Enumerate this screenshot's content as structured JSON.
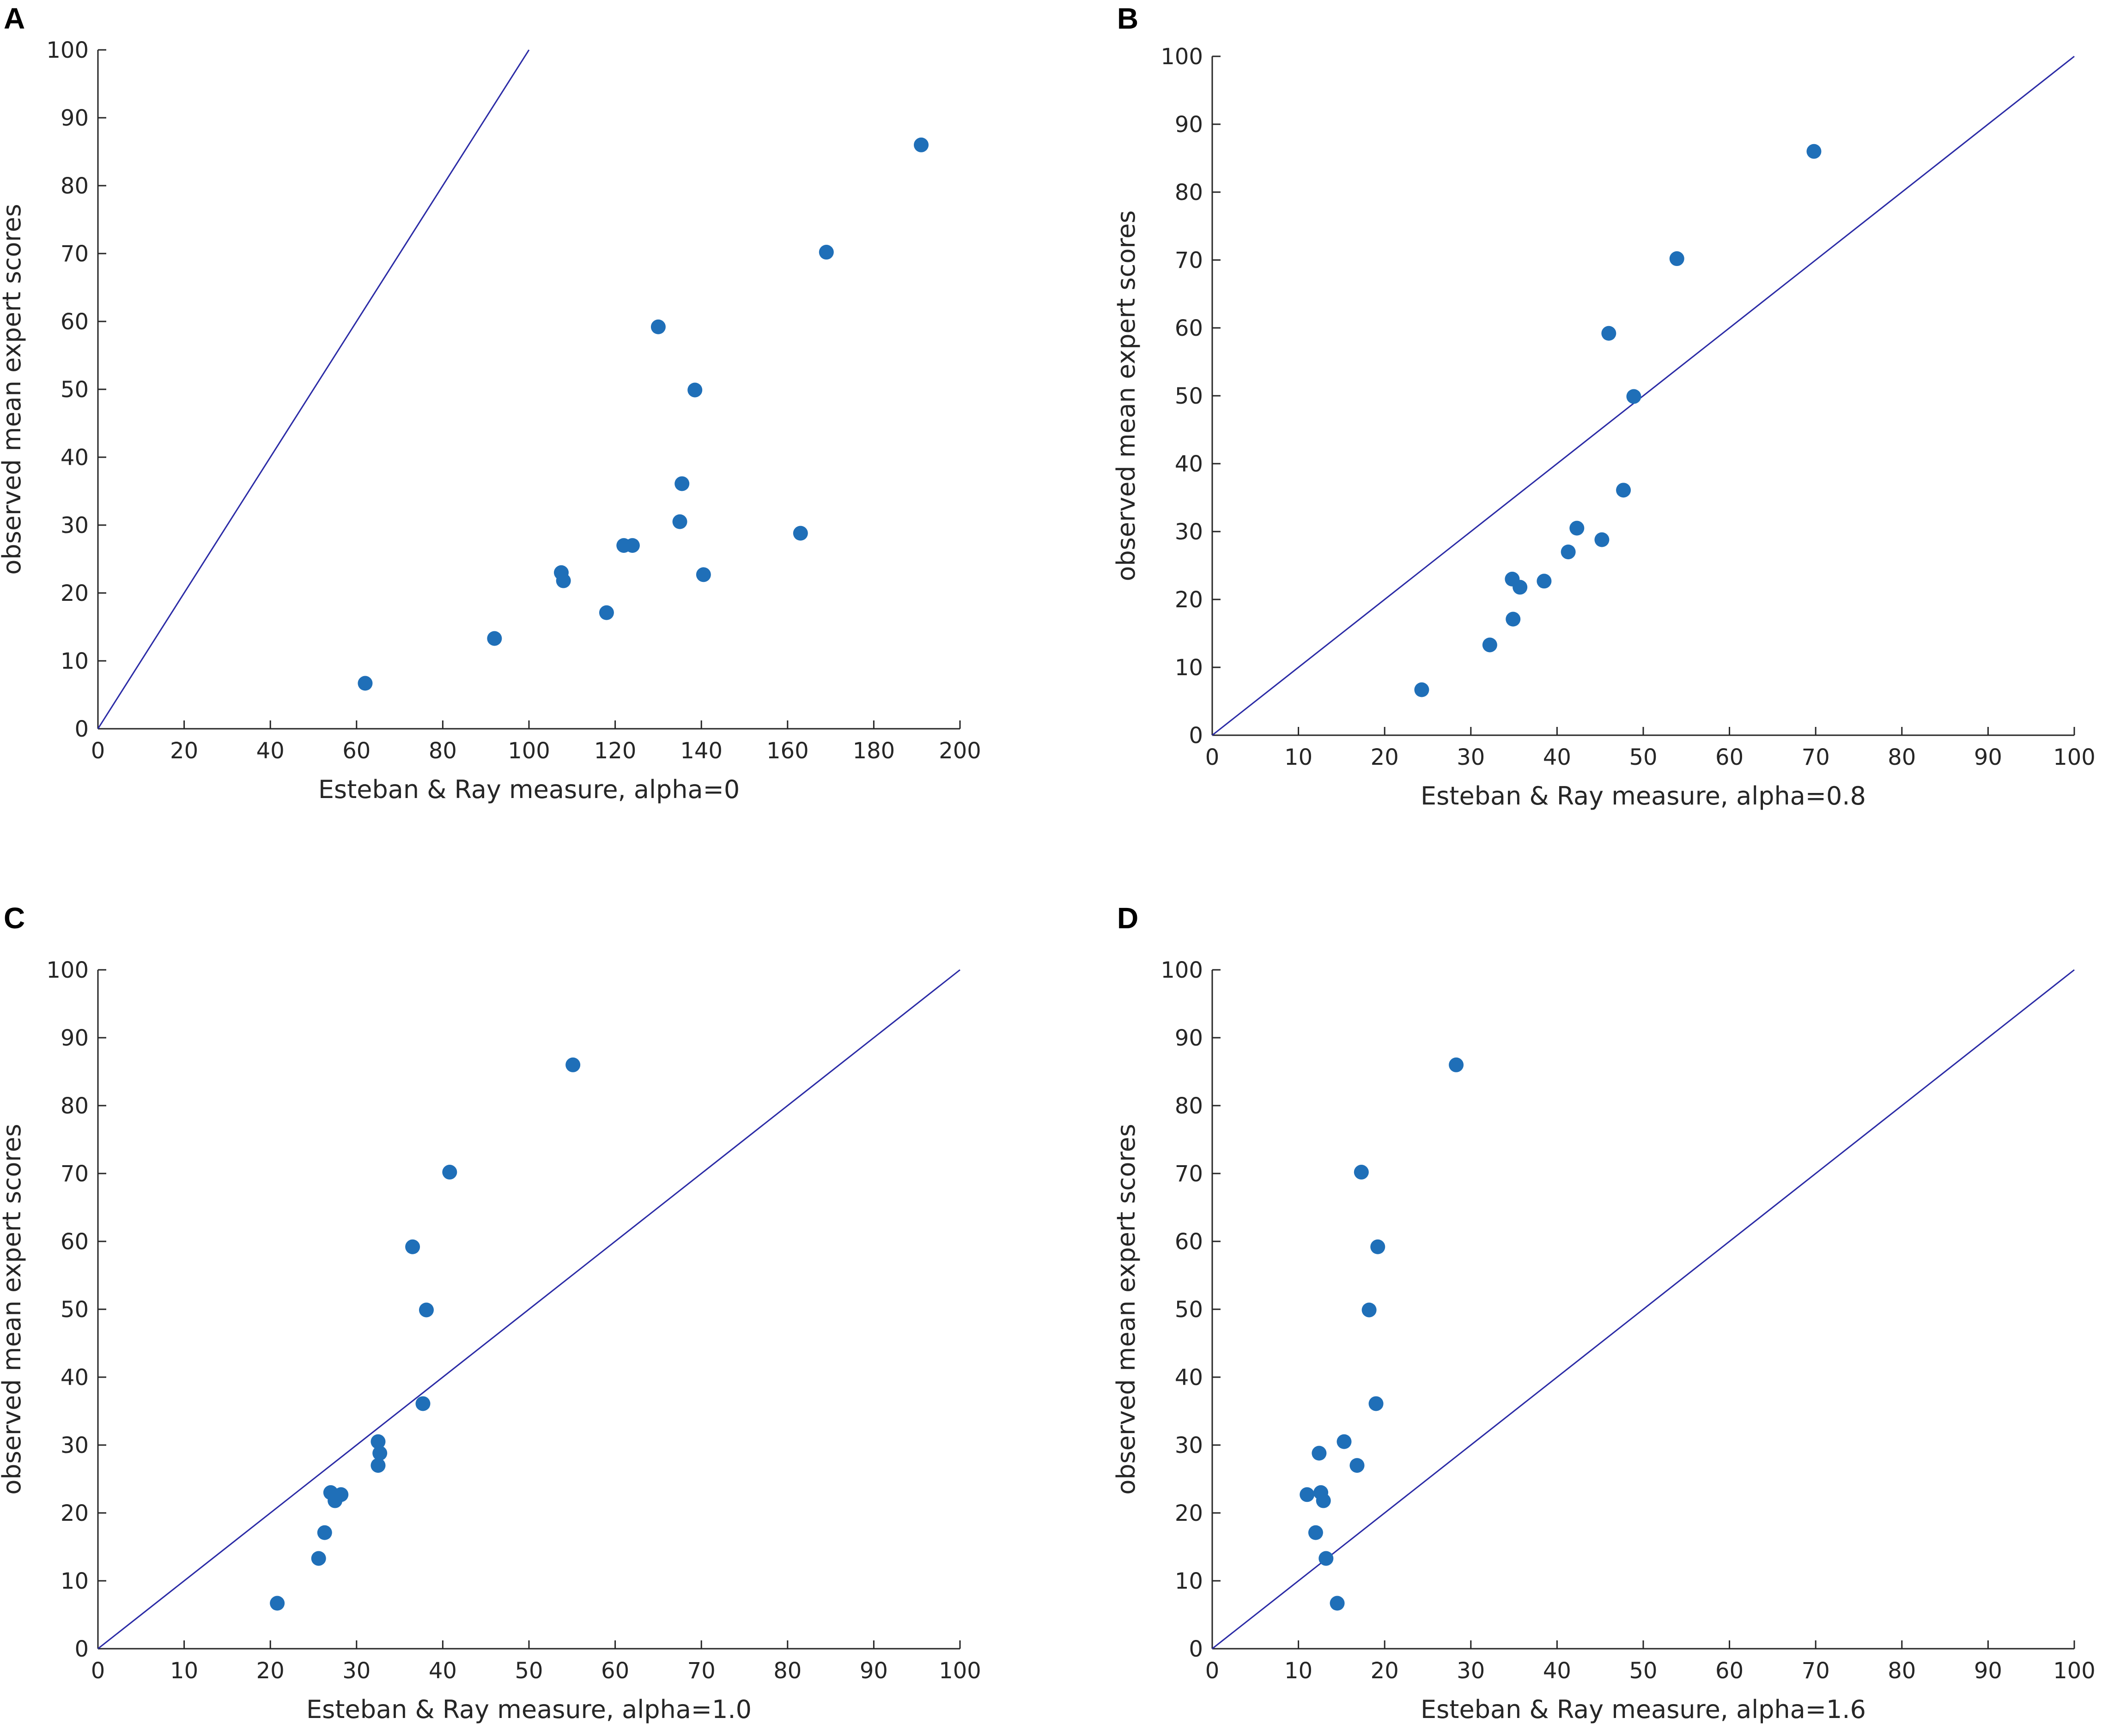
{
  "figure": {
    "panels": [
      "A",
      "B",
      "C",
      "D"
    ]
  },
  "style": {
    "point_color": "#1f6fb8",
    "line_color": "#2b2ba6",
    "axis_color": "#262626"
  },
  "chart_data": [
    {
      "panel": "A",
      "type": "scatter",
      "xlabel": "Esteban & Ray measure, alpha=0",
      "ylabel": "observed mean expert scores",
      "xlim": [
        0,
        200
      ],
      "ylim": [
        0,
        100
      ],
      "xticks": [
        0,
        20,
        40,
        60,
        80,
        100,
        120,
        140,
        160,
        180,
        200
      ],
      "yticks": [
        0,
        10,
        20,
        30,
        40,
        50,
        60,
        70,
        80,
        90,
        100
      ],
      "reference_line": [
        [
          0,
          0
        ],
        [
          100,
          100
        ]
      ],
      "points": [
        [
          62,
          6.7
        ],
        [
          92,
          13.3
        ],
        [
          107.5,
          23
        ],
        [
          108,
          21.8
        ],
        [
          118,
          17.1
        ],
        [
          122,
          27
        ],
        [
          124,
          27
        ],
        [
          130,
          59.2
        ],
        [
          135,
          30.5
        ],
        [
          135.5,
          36.1
        ],
        [
          138.5,
          49.9
        ],
        [
          140.5,
          22.7
        ],
        [
          163,
          28.8
        ],
        [
          169,
          70.2
        ],
        [
          191,
          86
        ]
      ]
    },
    {
      "panel": "B",
      "type": "scatter",
      "xlabel": "Esteban & Ray measure, alpha=0.8",
      "ylabel": "observed mean expert scores",
      "xlim": [
        0,
        100
      ],
      "ylim": [
        0,
        100
      ],
      "xticks": [
        0,
        10,
        20,
        30,
        40,
        50,
        60,
        70,
        80,
        90,
        100
      ],
      "yticks": [
        0,
        10,
        20,
        30,
        40,
        50,
        60,
        70,
        80,
        90,
        100
      ],
      "reference_line": [
        [
          0,
          0
        ],
        [
          100,
          100
        ]
      ],
      "points": [
        [
          24.3,
          6.7
        ],
        [
          32.2,
          13.3
        ],
        [
          34.9,
          17.1
        ],
        [
          34.8,
          23
        ],
        [
          35.7,
          21.8
        ],
        [
          38.5,
          22.7
        ],
        [
          41.3,
          27
        ],
        [
          42.3,
          30.5
        ],
        [
          45.2,
          28.8
        ],
        [
          46,
          59.2
        ],
        [
          47.7,
          36.1
        ],
        [
          48.9,
          49.9
        ],
        [
          53.9,
          70.2
        ],
        [
          69.8,
          86
        ]
      ]
    },
    {
      "panel": "C",
      "type": "scatter",
      "xlabel": "Esteban & Ray measure, alpha=1.0",
      "ylabel": "observed mean expert scores",
      "xlim": [
        0,
        100
      ],
      "ylim": [
        0,
        100
      ],
      "xticks": [
        0,
        10,
        20,
        30,
        40,
        50,
        60,
        70,
        80,
        90,
        100
      ],
      "yticks": [
        0,
        10,
        20,
        30,
        40,
        50,
        60,
        70,
        80,
        90,
        100
      ],
      "reference_line": [
        [
          0,
          0
        ],
        [
          100,
          100
        ]
      ],
      "points": [
        [
          20.8,
          6.7
        ],
        [
          25.6,
          13.3
        ],
        [
          26.3,
          17.1
        ],
        [
          27,
          23
        ],
        [
          27.5,
          21.8
        ],
        [
          28.2,
          22.7
        ],
        [
          32.5,
          30.5
        ],
        [
          32.7,
          28.8
        ],
        [
          32.5,
          27
        ],
        [
          36.5,
          59.2
        ],
        [
          37.7,
          36.1
        ],
        [
          38.1,
          49.9
        ],
        [
          40.8,
          70.2
        ],
        [
          55.1,
          86
        ]
      ]
    },
    {
      "panel": "D",
      "type": "scatter",
      "xlabel": "Esteban & Ray measure, alpha=1.6",
      "ylabel": "observed mean expert scores",
      "xlim": [
        0,
        100
      ],
      "ylim": [
        0,
        100
      ],
      "xticks": [
        0,
        10,
        20,
        30,
        40,
        50,
        60,
        70,
        80,
        90,
        100
      ],
      "yticks": [
        0,
        10,
        20,
        30,
        40,
        50,
        60,
        70,
        80,
        90,
        100
      ],
      "reference_line": [
        [
          0,
          0
        ],
        [
          100,
          100
        ]
      ],
      "points": [
        [
          11,
          22.7
        ],
        [
          12,
          17.1
        ],
        [
          12.4,
          28.8
        ],
        [
          12.6,
          23
        ],
        [
          12.9,
          21.8
        ],
        [
          13.2,
          13.3
        ],
        [
          14.5,
          6.7
        ],
        [
          15.3,
          30.5
        ],
        [
          16.8,
          27
        ],
        [
          17.3,
          70.2
        ],
        [
          18.2,
          49.9
        ],
        [
          19,
          36.1
        ],
        [
          19.2,
          59.2
        ],
        [
          28.3,
          86
        ]
      ]
    }
  ]
}
